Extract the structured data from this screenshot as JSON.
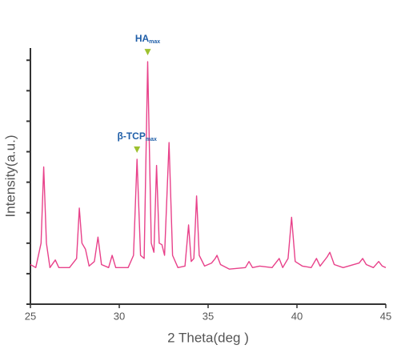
{
  "chart_data": {
    "type": "line",
    "x_label": "2 Theta(deg )",
    "y_label": "Intensity(a.u.)",
    "x": [
      25.0,
      25.3,
      25.6,
      25.75,
      25.9,
      26.1,
      26.4,
      26.6,
      27.2,
      27.4,
      27.6,
      27.75,
      27.9,
      28.1,
      28.3,
      28.6,
      28.8,
      29.0,
      29.4,
      29.6,
      29.8,
      30.5,
      30.8,
      31.0,
      31.2,
      31.4,
      31.6,
      31.8,
      31.95,
      32.1,
      32.25,
      32.4,
      32.55,
      32.8,
      33.0,
      33.3,
      33.7,
      33.9,
      34.05,
      34.2,
      34.35,
      34.5,
      34.8,
      35.2,
      35.4,
      35.5,
      35.7,
      36.2,
      37.1,
      37.3,
      37.5,
      37.9,
      38.6,
      39.0,
      39.2,
      39.5,
      39.7,
      39.9,
      40.3,
      40.8,
      41.1,
      41.3,
      41.7,
      41.85,
      42.1,
      42.6,
      43.5,
      43.7,
      43.9,
      44.3,
      44.6,
      44.8,
      45.0
    ],
    "values": [
      1.3,
      1.2,
      2.0,
      4.5,
      2.0,
      1.2,
      1.45,
      1.2,
      1.2,
      1.35,
      1.5,
      3.15,
      2.0,
      1.8,
      1.25,
      1.4,
      2.2,
      1.3,
      1.2,
      1.6,
      1.2,
      1.2,
      1.6,
      4.75,
      1.6,
      1.5,
      7.95,
      2.0,
      1.7,
      4.55,
      2.0,
      1.95,
      1.6,
      5.3,
      1.6,
      1.2,
      1.25,
      2.6,
      1.4,
      1.5,
      3.55,
      1.6,
      1.25,
      1.35,
      1.5,
      1.6,
      1.3,
      1.15,
      1.2,
      1.4,
      1.2,
      1.25,
      1.2,
      1.5,
      1.2,
      1.5,
      2.85,
      1.4,
      1.25,
      1.2,
      1.5,
      1.25,
      1.55,
      1.7,
      1.3,
      1.2,
      1.35,
      1.5,
      1.3,
      1.2,
      1.4,
      1.25,
      1.2
    ],
    "color": "#e8418a",
    "xlim": [
      25,
      45
    ],
    "xticks": [
      25,
      30,
      35,
      40,
      45
    ],
    "ylim": [
      0,
      8.4
    ],
    "yticks": [
      0,
      1,
      2,
      3,
      4,
      5,
      6,
      7,
      8
    ],
    "ytick_labels": false,
    "annotations": [
      {
        "text": "HA",
        "sub": "max",
        "x": 31.6
      },
      {
        "text": "β-TCP",
        "sub": "max",
        "x": 31.0
      }
    ],
    "annotation_text_color": "#1f5ea8",
    "annotation_marker_color": "#9dc12f"
  }
}
